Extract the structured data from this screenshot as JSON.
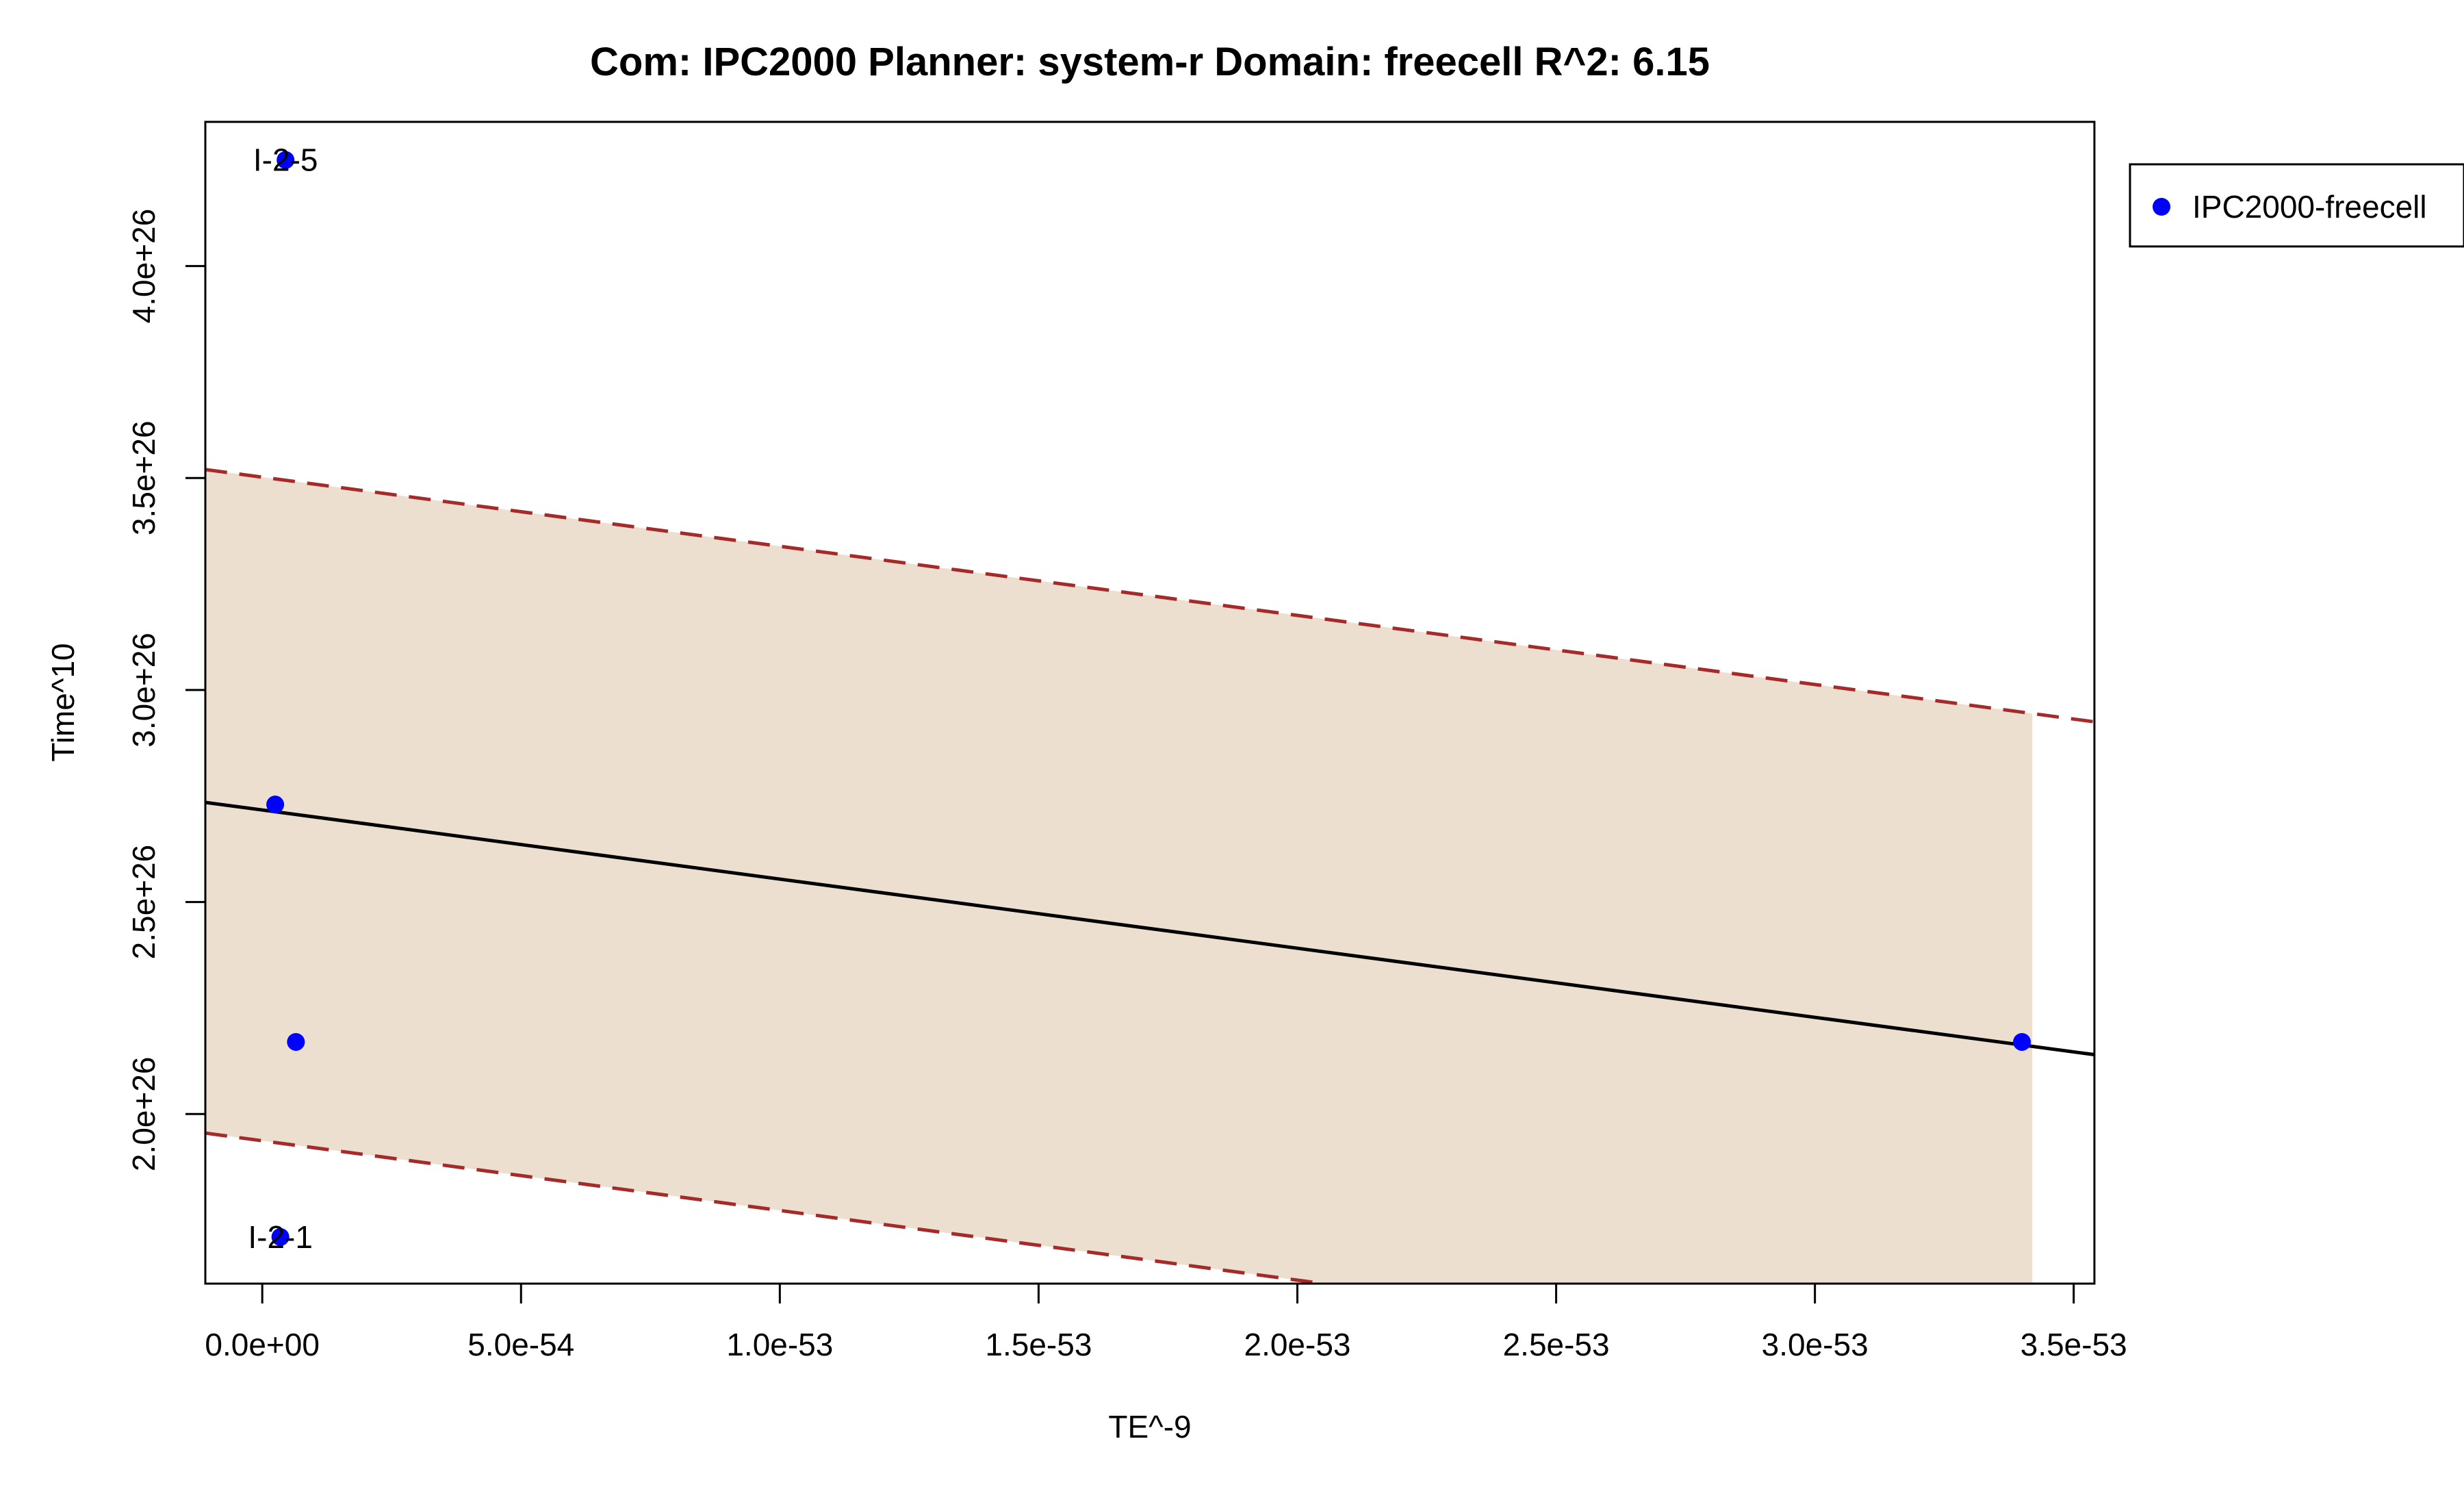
{
  "chart_data": {
    "type": "scatter",
    "title": "Com: IPC2000 Planner: system-r Domain: freecell R^2: 6.15",
    "xlabel": "TE^-9",
    "ylabel": "Time^10",
    "xlim": [
      -1.1e-54,
      3.54e-53
    ],
    "ylim": [
      1.6e+26,
      4.34e+26
    ],
    "x_ticks": [
      0,
      5e-54,
      1e-53,
      1.5e-53,
      2e-53,
      2.5e-53,
      3e-53,
      3.5e-53
    ],
    "x_tick_labels": [
      "0.0e+00",
      "5.0e-54",
      "1.0e-53",
      "1.5e-53",
      "2.0e-53",
      "2.5e-53",
      "3.0e-53",
      "3.5e-53"
    ],
    "y_ticks": [
      2e+26,
      2.5e+26,
      3e+26,
      3.5e+26,
      4e+26
    ],
    "y_tick_labels": [
      "2.0e+26",
      "2.5e+26",
      "3.0e+26",
      "3.5e+26",
      "4.0e+26"
    ],
    "series": [
      {
        "name": "IPC2000-freecell",
        "color": "#0000ff",
        "points": [
          {
            "x": 4.5e-55,
            "y": 4.25e+26,
            "label": "I-2-5"
          },
          {
            "x": 2.5e-55,
            "y": 2.73e+26,
            "label": ""
          },
          {
            "x": 6.5e-55,
            "y": 2.17e+26,
            "label": ""
          },
          {
            "x": 3.4e-53,
            "y": 2.17e+26,
            "label": ""
          },
          {
            "x": 3.5e-55,
            "y": 1.71e+26,
            "label": "I-2-1"
          }
        ]
      }
    ],
    "fit_line": {
      "color": "#000000",
      "start": [
        -1.1e-54,
        2.735e+26
      ],
      "end": [
        3.54e-53,
        2.14e+26
      ]
    },
    "upper_band": {
      "color": "#a52a2a",
      "start": [
        -1.1e-54,
        3.52e+26
      ],
      "end": [
        3.54e-53,
        2.925e+26
      ]
    },
    "lower_band": {
      "color": "#a52a2a",
      "start": [
        -1.1e-54,
        1.955e+26
      ],
      "end": [
        2.05e-53,
        1.6e+26
      ]
    },
    "shade": {
      "color": "#eddfcf",
      "x_range": [
        -1.1e-54,
        3.42e-53
      ]
    },
    "legend": {
      "position": "top-right",
      "entries": [
        "IPC2000-freecell"
      ]
    },
    "grid": false
  }
}
